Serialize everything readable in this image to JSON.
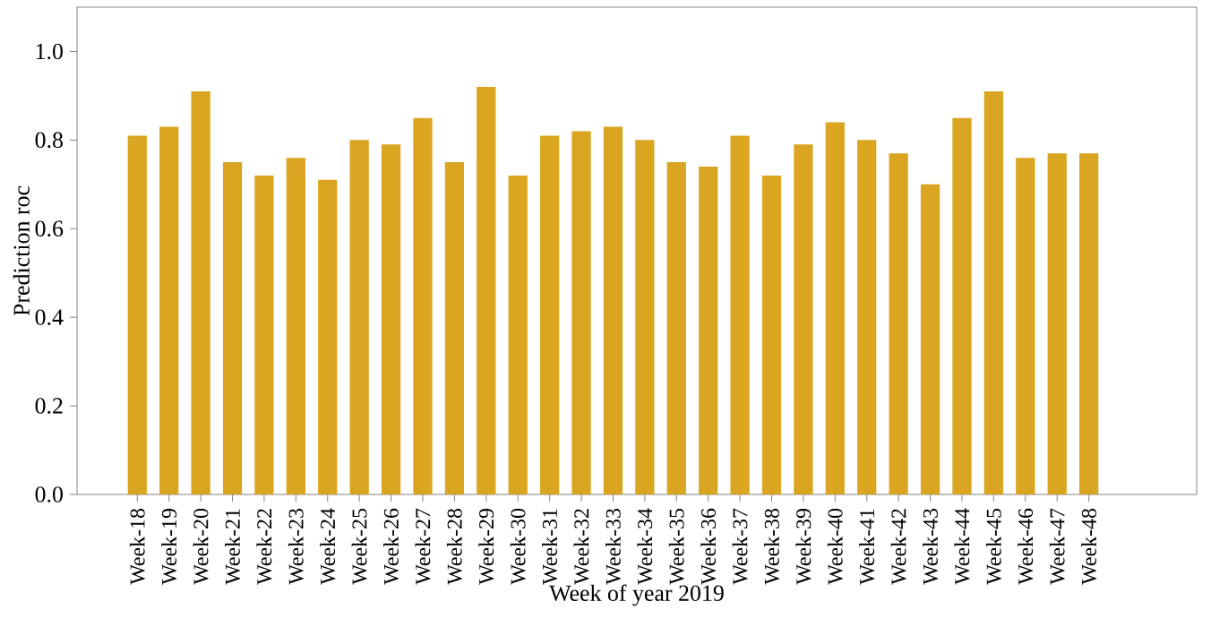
{
  "chart_data": {
    "type": "bar",
    "xlabel": "Week of year 2019",
    "ylabel": "Prediction roc",
    "categories": [
      "Week-18",
      "Week-19",
      "Week-20",
      "Week-21",
      "Week-22",
      "Week-23",
      "Week-24",
      "Week-25",
      "Week-26",
      "Week-27",
      "Week-28",
      "Week-29",
      "Week-30",
      "Week-31",
      "Week-32",
      "Week-33",
      "Week-34",
      "Week-35",
      "Week-36",
      "Week-37",
      "Week-38",
      "Week-39",
      "Week-40",
      "Week-41",
      "Week-42",
      "Week-43",
      "Week-44",
      "Week-45",
      "Week-46",
      "Week-47",
      "Week-48"
    ],
    "values": [
      0.81,
      0.83,
      0.91,
      0.75,
      0.72,
      0.76,
      0.71,
      0.8,
      0.79,
      0.85,
      0.75,
      0.92,
      0.72,
      0.81,
      0.82,
      0.83,
      0.8,
      0.75,
      0.74,
      0.81,
      0.72,
      0.79,
      0.84,
      0.8,
      0.77,
      0.7,
      0.85,
      0.91,
      0.76,
      0.77,
      0.77
    ],
    "color": "#daa520",
    "ylim": [
      0,
      1.1
    ],
    "yticks": [
      {
        "value": 0,
        "label": "0.0"
      },
      0.2,
      0.4,
      0.6,
      0.8,
      {
        "value": 1,
        "label": "1.0"
      }
    ]
  }
}
